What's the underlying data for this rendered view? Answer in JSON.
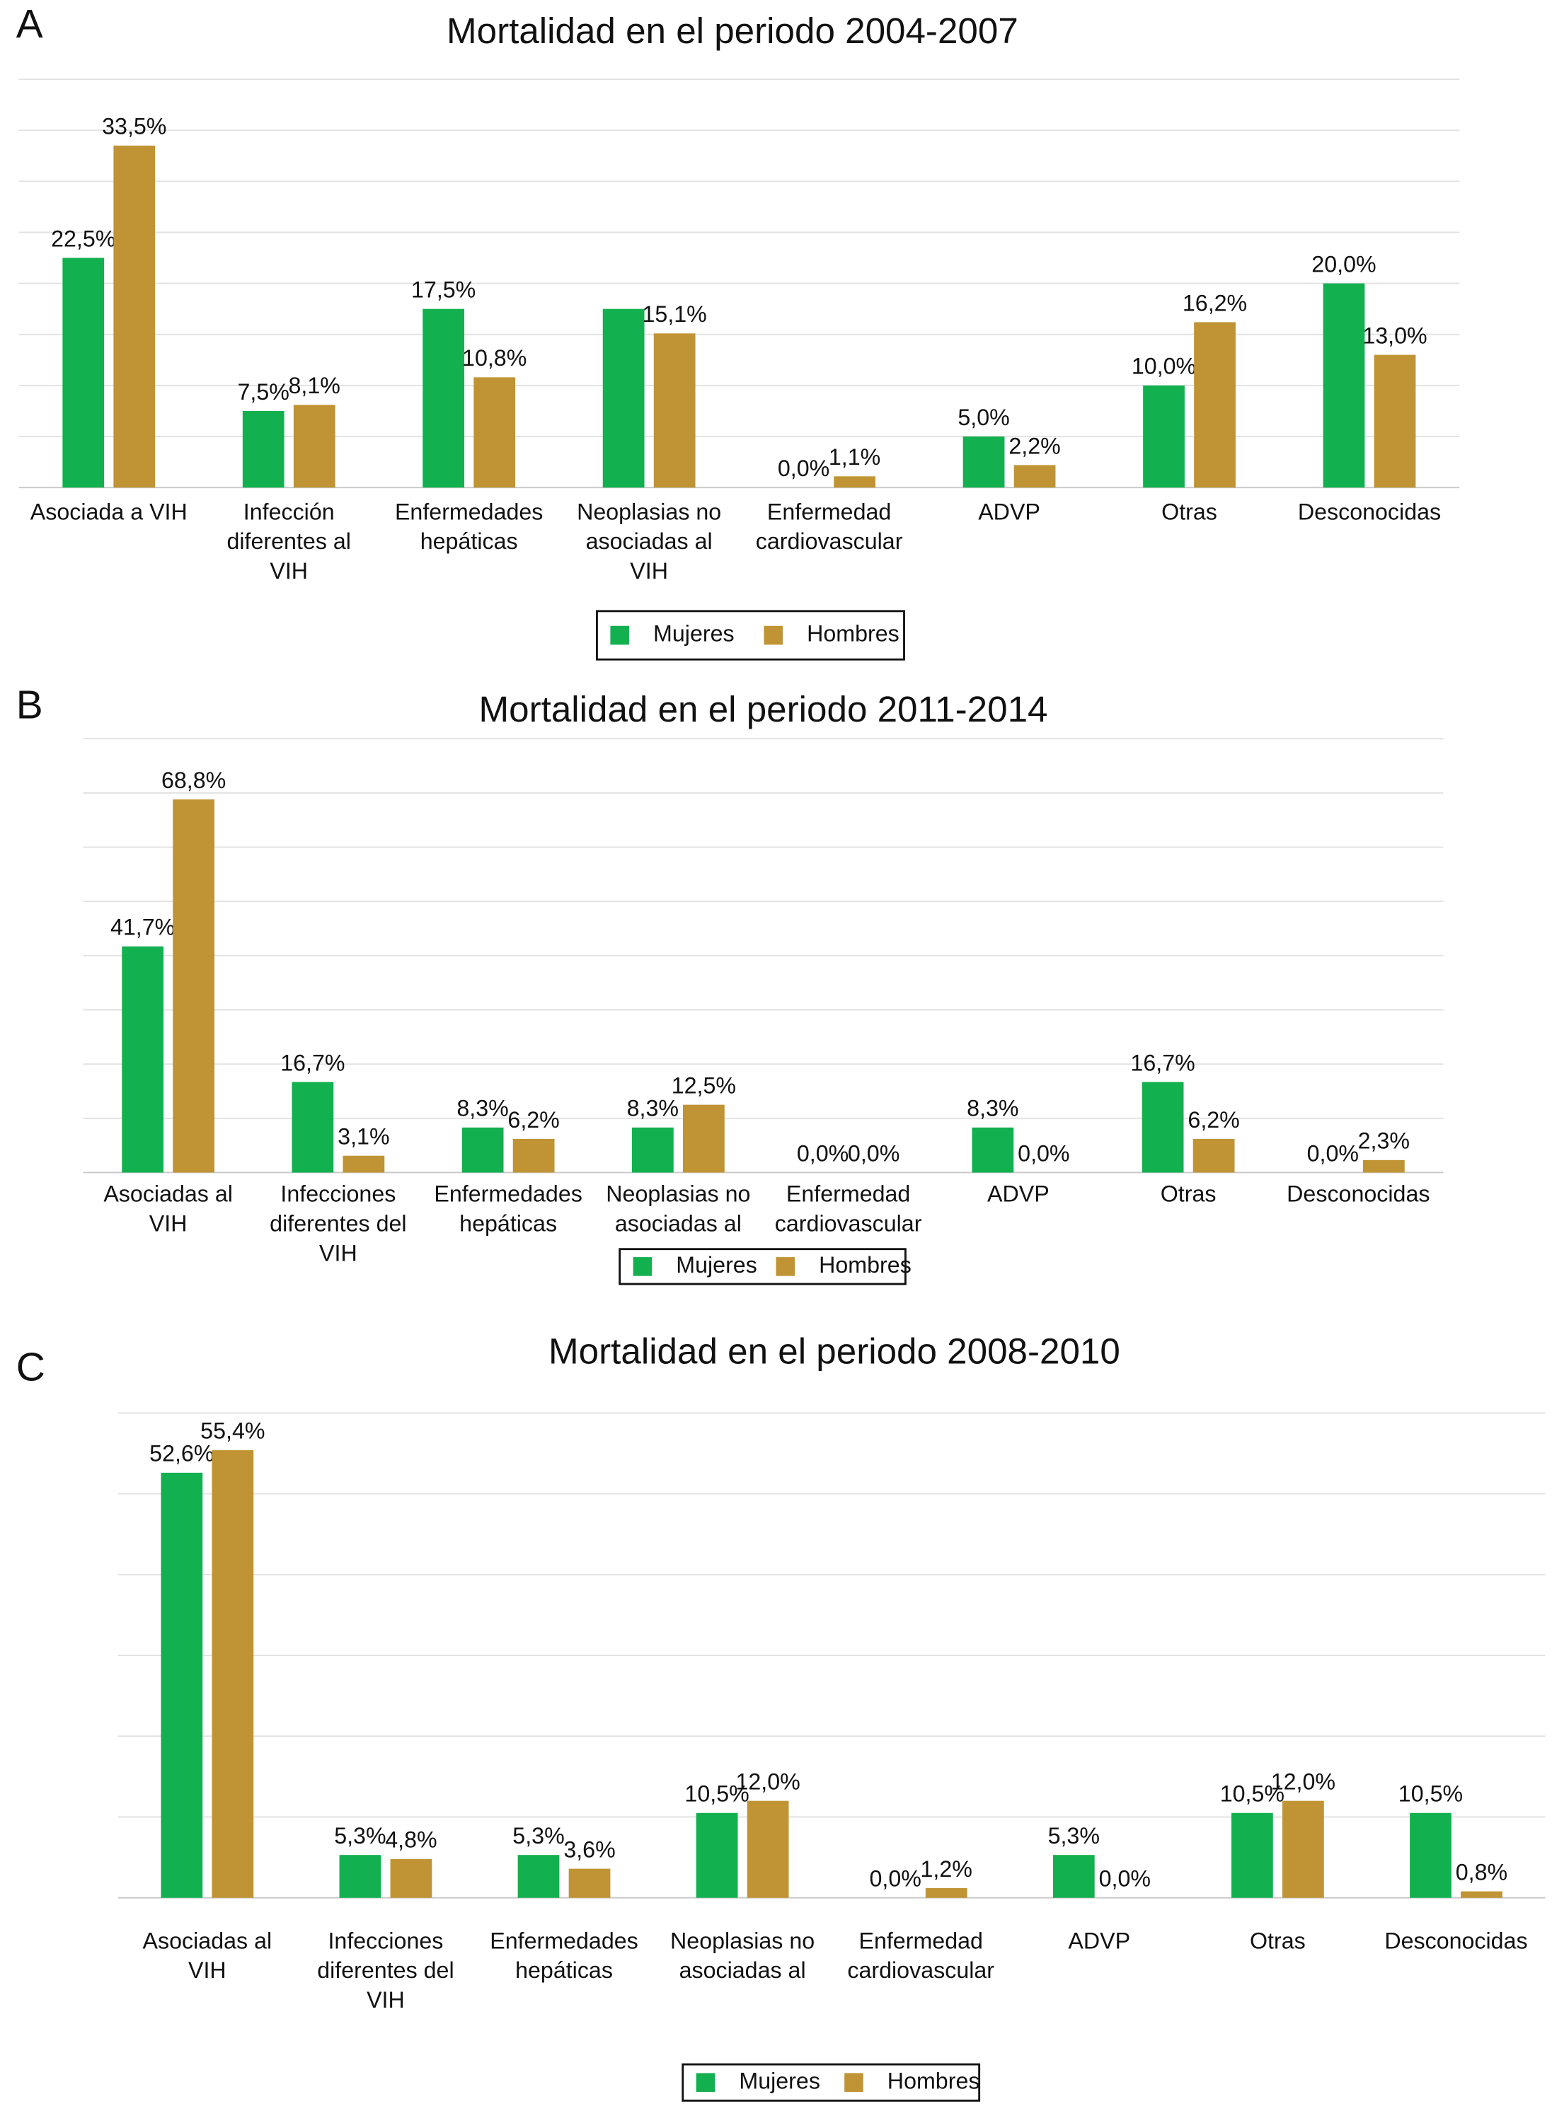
{
  "chart_data": [
    {
      "type": "bar",
      "panel": "A",
      "title": "Mortalidad en el periodo 2004-2007",
      "categories": [
        "Asociada a VIH",
        "Infección diferentes al VIH",
        "Enfermedades hepáticas",
        "Neoplasias no asociadas al VIH",
        "Enfermedad cardiovascular",
        "ADVP",
        "Otras",
        "Desconocidas"
      ],
      "series": [
        {
          "name": "Mujeres",
          "color": "#12b04f",
          "values": [
            22.5,
            7.5,
            17.5,
            17.5,
            0,
            5,
            10,
            20
          ],
          "value_labels": [
            "22,5%",
            "7,5%",
            "17,5%",
            null,
            "0,0%",
            "5,0%",
            "10,0%",
            "20,0%"
          ]
        },
        {
          "name": "Hombres",
          "color": "#c09434",
          "values": [
            33.5,
            8.1,
            10.8,
            15.1,
            1.1,
            2.2,
            16.2,
            13
          ],
          "value_labels": [
            "33,5%",
            "8,1%",
            "10,8%",
            "15,1%",
            "1,1%",
            "2,2%",
            "16,2%",
            "13,0%"
          ]
        }
      ],
      "ylim": [
        0,
        40
      ],
      "yticks": [
        0,
        5,
        10,
        15,
        20,
        25,
        30,
        35,
        40
      ],
      "grid": true,
      "legend": "bottom"
    },
    {
      "type": "bar",
      "panel": "B",
      "title": "Mortalidad en el periodo 2011-2014",
      "categories": [
        "Asociadas al VIH",
        "Infecciones diferentes del VIH",
        "Enfermedades hepáticas",
        "Neoplasias no asociadas al",
        "Enfermedad cardiovascular",
        "ADVP",
        "Otras",
        "Desconocidas"
      ],
      "series": [
        {
          "name": "Mujeres",
          "color": "#12b04f",
          "values": [
            41.7,
            16.7,
            8.3,
            8.3,
            0,
            8.3,
            16.7,
            0
          ],
          "value_labels": [
            "41,7%",
            "16,7%",
            "8,3%",
            "8,3%",
            "0,0%",
            "8,3%",
            "16,7%",
            "0,0%"
          ]
        },
        {
          "name": "Hombres",
          "color": "#c09434",
          "values": [
            68.8,
            3.1,
            6.2,
            12.5,
            0,
            0,
            6.2,
            2.3
          ],
          "value_labels": [
            "68,8%",
            "3,1%",
            "6,2%",
            "12,5%",
            "0,0%",
            "0,0%",
            "6,2%",
            "2,3%"
          ]
        }
      ],
      "ylim": [
        0,
        80
      ],
      "yticks": [
        0,
        10,
        20,
        30,
        40,
        50,
        60,
        70,
        80
      ],
      "grid": true,
      "legend": "bottom"
    },
    {
      "type": "bar",
      "panel": "C",
      "title": "Mortalidad en el periodo 2008-2010",
      "categories": [
        "Asociadas al VIH",
        "Infecciones diferentes del VIH",
        "Enfermedades hepáticas",
        "Neoplasias no asociadas al",
        "Enfermedad cardiovascular",
        "ADVP",
        "Otras",
        "Desconocidas"
      ],
      "series": [
        {
          "name": "Mujeres",
          "color": "#12b04f",
          "values": [
            52.6,
            5.3,
            5.3,
            10.5,
            0,
            5.3,
            10.5,
            10.5
          ],
          "value_labels": [
            "52,6%",
            "5,3%",
            "5,3%",
            "10,5%",
            "0,0%",
            "5,3%",
            "10,5%",
            "10,5%"
          ]
        },
        {
          "name": "Hombres",
          "color": "#c09434",
          "values": [
            55.4,
            4.8,
            3.6,
            12,
            1.2,
            0,
            12,
            0.8
          ],
          "value_labels": [
            "55,4%",
            "4,8%",
            "3,6%",
            "12,0%",
            "1,2%",
            "0,0%",
            "12,0%",
            "0,8%"
          ]
        }
      ],
      "ylim": [
        0,
        60
      ],
      "yticks": [
        0,
        10,
        20,
        30,
        40,
        50,
        60
      ],
      "grid": true,
      "legend": "bottom"
    }
  ]
}
